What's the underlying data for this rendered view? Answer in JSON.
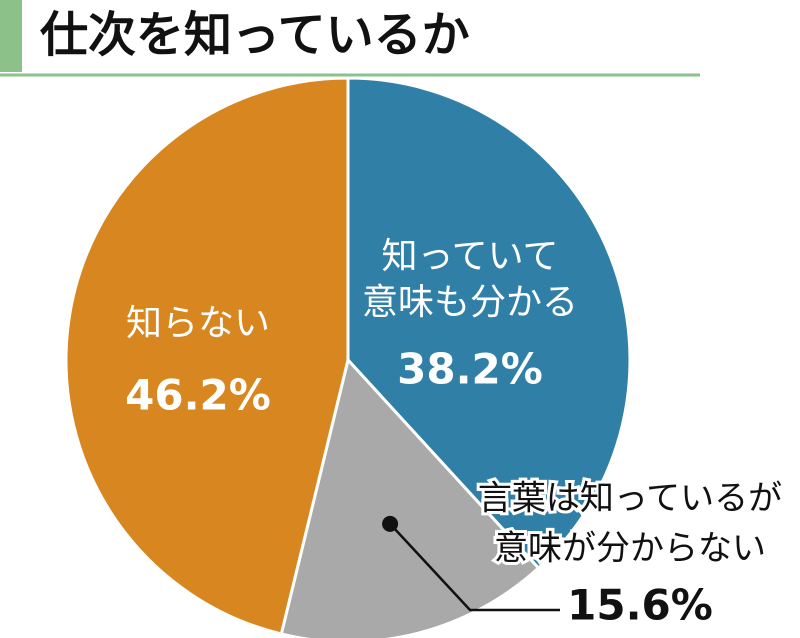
{
  "chart_data": {
    "type": "pie",
    "title": "仕次を知っているか",
    "categories": [
      [
        "知っていて",
        "意味も分かる"
      ],
      [
        "言葉は知っているが",
        "意味が分からない"
      ],
      [
        "知らない"
      ]
    ],
    "values": [
      38.2,
      15.6,
      46.2
    ],
    "value_labels": [
      "38.2%",
      "15.6%",
      "46.2%"
    ],
    "colors": [
      "#2f7fa7",
      "#a9a9a9",
      "#d8861f"
    ]
  }
}
